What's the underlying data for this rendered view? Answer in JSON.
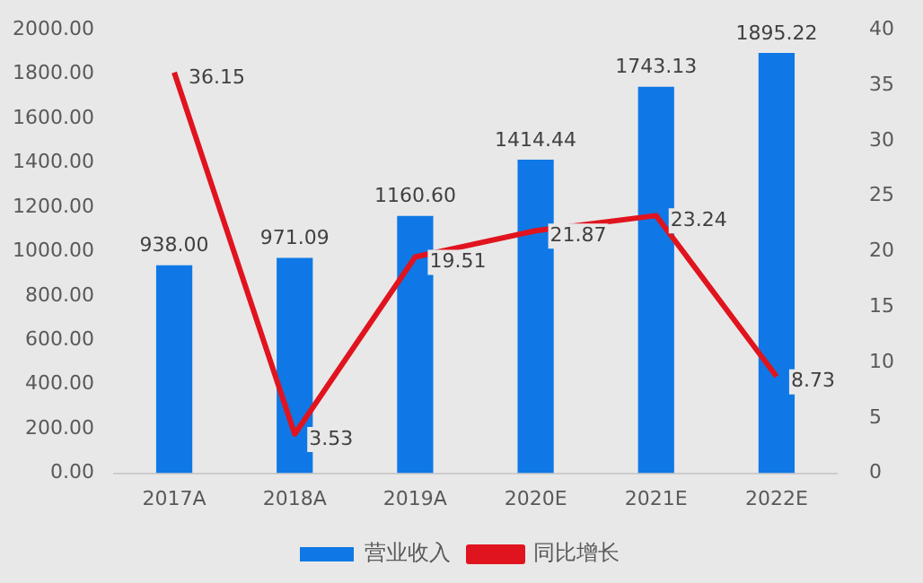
{
  "chart_data": {
    "type": "bar",
    "categories": [
      "2017A",
      "2018A",
      "2019A",
      "2020E",
      "2021E",
      "2022E"
    ],
    "series": [
      {
        "name": "营业收入",
        "color": "#0f78e6",
        "values": [
          938.0,
          971.09,
          1160.6,
          1414.44,
          1743.13,
          1895.22
        ],
        "value_labels": [
          "938.00",
          "971.09",
          "1160.60",
          "1414.44",
          "1743.13",
          "1895.22"
        ]
      },
      {
        "name": "同比增长",
        "type": "line",
        "axis": "y2",
        "color": "#e0141e",
        "values": [
          36.15,
          3.53,
          19.51,
          21.87,
          23.24,
          8.73
        ],
        "value_labels": [
          "36.15",
          "3.53",
          "19.51",
          "21.87",
          "23.24",
          "8.73"
        ]
      }
    ],
    "ylim": [
      0,
      2000
    ],
    "yticks": [
      {
        "value": 0,
        "label": "0.00"
      },
      {
        "value": 200,
        "label": "200.00"
      },
      {
        "value": 400,
        "label": "400.00"
      },
      {
        "value": 600,
        "label": "600.00"
      },
      {
        "value": 800,
        "label": "800.00"
      },
      {
        "value": 1000,
        "label": "1000.00"
      },
      {
        "value": 1200,
        "label": "1200.00"
      },
      {
        "value": 1400,
        "label": "1400.00"
      },
      {
        "value": 1600,
        "label": "1600.00"
      },
      {
        "value": 1800,
        "label": "1800.00"
      },
      {
        "value": 2000,
        "label": "2000.00"
      }
    ],
    "y2lim": [
      0,
      40
    ],
    "y2ticks": [
      0,
      5,
      10,
      15,
      20,
      25,
      30,
      35,
      40
    ],
    "grid": false,
    "legend": "bottom",
    "marker": "none"
  }
}
